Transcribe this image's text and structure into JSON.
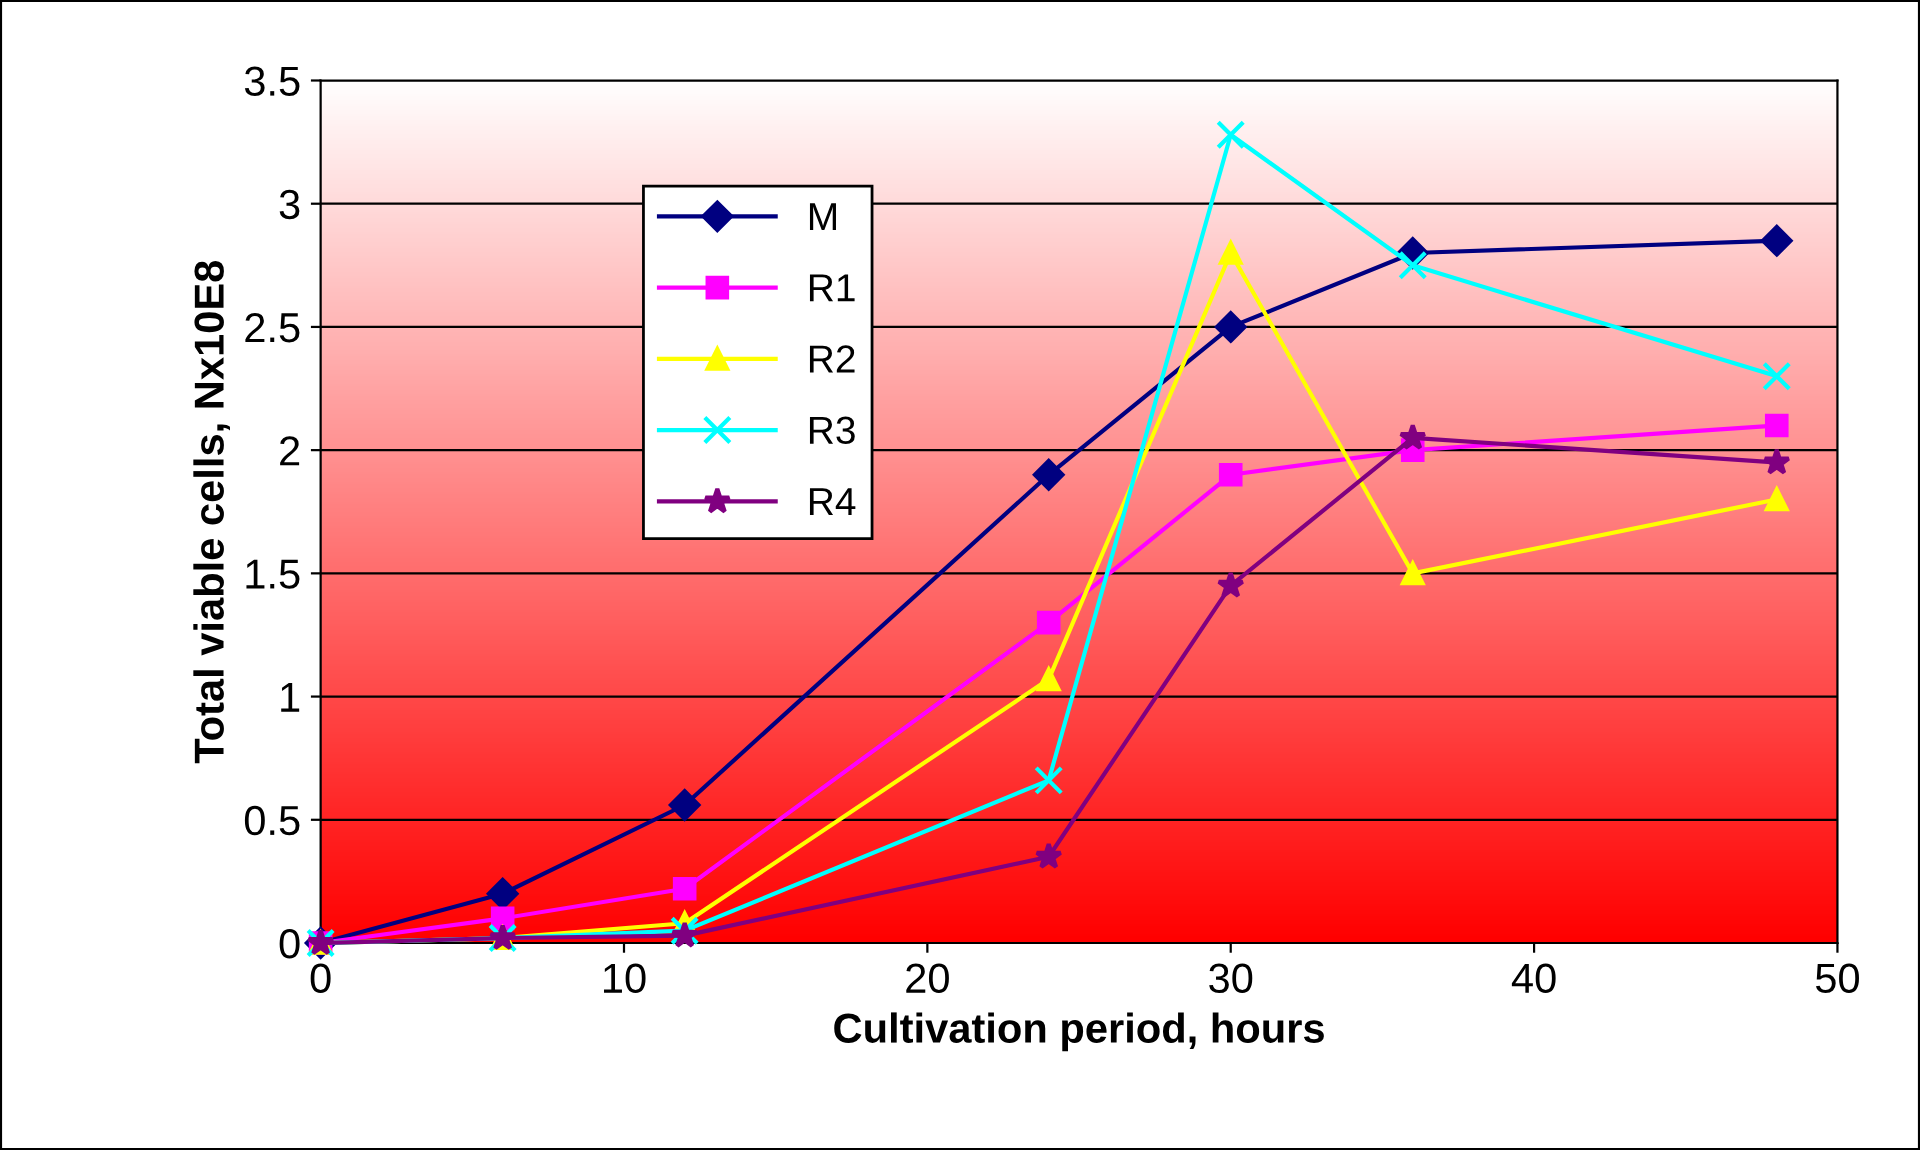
{
  "chart_data": {
    "type": "line",
    "xlabel": "Cultivation period, hours",
    "ylabel": "Total viable cells, Nx10E8",
    "x": [
      0,
      6,
      12,
      24,
      30,
      36,
      48
    ],
    "series": [
      {
        "name": "M",
        "color": "#000080",
        "marker": "diamond",
        "values": [
          0,
          0.2,
          0.56,
          1.9,
          2.5,
          2.8,
          2.85
        ]
      },
      {
        "name": "R1",
        "color": "#ff00ff",
        "marker": "square",
        "values": [
          0,
          0.1,
          0.22,
          1.3,
          1.9,
          2.0,
          2.1
        ]
      },
      {
        "name": "R2",
        "color": "#ffff00",
        "marker": "triangle",
        "values": [
          0,
          0.02,
          0.08,
          1.07,
          2.8,
          1.5,
          1.8
        ]
      },
      {
        "name": "R3",
        "color": "#00ffff",
        "marker": "cross",
        "values": [
          0,
          0.02,
          0.05,
          0.66,
          3.28,
          2.75,
          2.3
        ]
      },
      {
        "name": "R4",
        "color": "#800080",
        "marker": "star",
        "values": [
          0,
          0.02,
          0.03,
          0.35,
          1.45,
          2.05,
          1.95
        ]
      }
    ],
    "xlim": [
      0,
      50
    ],
    "xticks": [
      0,
      10,
      20,
      30,
      40,
      50
    ],
    "ylim": [
      0,
      3.5
    ],
    "yticks": [
      0,
      0.5,
      1,
      1.5,
      2,
      2.5,
      3,
      3.5
    ],
    "grid": "y",
    "legend": "top left"
  }
}
